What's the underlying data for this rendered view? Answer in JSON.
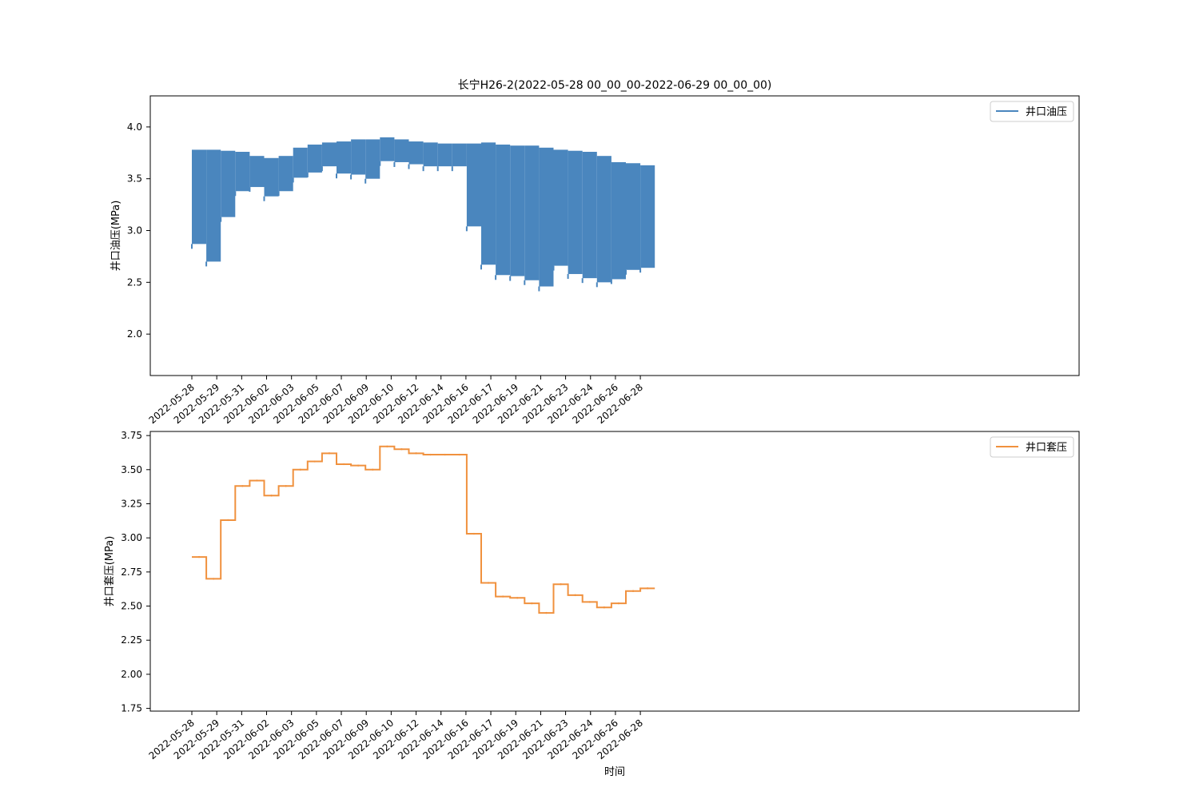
{
  "chart_data": [
    {
      "type": "line",
      "title": "长宁H26-2(2022-05-28 00_00_00-2022-06-29 00_00_00)",
      "xlabel": "",
      "ylabel": "井口油压(MPa)",
      "ylim": [
        1.6,
        4.3
      ],
      "yticks": [
        "2.0",
        "2.5",
        "3.0",
        "3.5",
        "4.0"
      ],
      "xticks": [
        "2022-05-28",
        "2022-05-29",
        "2022-05-31",
        "2022-06-02",
        "2022-06-03",
        "2022-06-05",
        "2022-06-07",
        "2022-06-09",
        "2022-06-10",
        "2022-06-12",
        "2022-06-14",
        "2022-06-16",
        "2022-06-17",
        "2022-06-19",
        "2022-06-21",
        "2022-06-23",
        "2022-06-24",
        "2022-06-26",
        "2022-06-28"
      ],
      "legend": "top-right",
      "grid": false,
      "color": "#4a86be",
      "series": [
        {
          "name": "井口油压",
          "x": [
            "2022-05-28",
            "2022-05-29",
            "2022-05-30",
            "2022-05-31",
            "2022-06-01",
            "2022-06-02",
            "2022-06-03",
            "2022-06-04",
            "2022-06-05",
            "2022-06-06",
            "2022-06-07",
            "2022-06-08",
            "2022-06-09",
            "2022-06-10",
            "2022-06-11",
            "2022-06-12",
            "2022-06-13",
            "2022-06-14",
            "2022-06-15",
            "2022-06-16",
            "2022-06-17",
            "2022-06-18",
            "2022-06-19",
            "2022-06-20",
            "2022-06-21",
            "2022-06-22",
            "2022-06-23",
            "2022-06-24",
            "2022-06-25",
            "2022-06-26",
            "2022-06-27",
            "2022-06-28"
          ],
          "low": [
            2.87,
            2.7,
            3.13,
            3.38,
            3.42,
            3.33,
            3.38,
            3.51,
            3.56,
            3.62,
            3.55,
            3.54,
            3.5,
            3.67,
            3.66,
            3.64,
            3.62,
            3.62,
            3.62,
            3.04,
            2.67,
            2.57,
            2.56,
            2.52,
            2.46,
            2.66,
            2.58,
            2.54,
            2.5,
            2.53,
            2.62,
            2.64
          ],
          "high": [
            3.78,
            3.78,
            3.77,
            3.76,
            3.72,
            3.7,
            3.72,
            3.8,
            3.83,
            3.85,
            3.86,
            3.88,
            3.88,
            3.9,
            3.88,
            3.86,
            3.85,
            3.84,
            3.84,
            3.84,
            3.85,
            3.83,
            3.82,
            3.82,
            3.8,
            3.78,
            3.77,
            3.76,
            3.72,
            3.66,
            3.65,
            3.63
          ]
        }
      ]
    },
    {
      "type": "line",
      "title": "",
      "xlabel": "时间",
      "ylabel": "井口套压(MPa)",
      "ylim": [
        1.73,
        3.78
      ],
      "yticks": [
        "1.75",
        "2.00",
        "2.25",
        "2.50",
        "2.75",
        "3.00",
        "3.25",
        "3.50",
        "3.75"
      ],
      "xticks": [
        "2022-05-28",
        "2022-05-29",
        "2022-05-31",
        "2022-06-02",
        "2022-06-03",
        "2022-06-05",
        "2022-06-07",
        "2022-06-09",
        "2022-06-10",
        "2022-06-12",
        "2022-06-14",
        "2022-06-16",
        "2022-06-17",
        "2022-06-19",
        "2022-06-21",
        "2022-06-23",
        "2022-06-24",
        "2022-06-26",
        "2022-06-28"
      ],
      "legend": "top-right",
      "grid": false,
      "color": "#f0913e",
      "series": [
        {
          "name": "井口套压",
          "x": [
            "2022-05-28",
            "2022-05-29",
            "2022-05-30",
            "2022-05-31",
            "2022-06-01",
            "2022-06-02",
            "2022-06-03",
            "2022-06-04",
            "2022-06-05",
            "2022-06-06",
            "2022-06-07",
            "2022-06-08",
            "2022-06-09",
            "2022-06-10",
            "2022-06-11",
            "2022-06-12",
            "2022-06-13",
            "2022-06-14",
            "2022-06-15",
            "2022-06-16",
            "2022-06-17",
            "2022-06-18",
            "2022-06-19",
            "2022-06-20",
            "2022-06-21",
            "2022-06-22",
            "2022-06-23",
            "2022-06-24",
            "2022-06-25",
            "2022-06-26",
            "2022-06-27",
            "2022-06-28"
          ],
          "values": [
            2.86,
            2.7,
            3.13,
            3.38,
            3.42,
            3.31,
            3.38,
            3.5,
            3.56,
            3.62,
            3.54,
            3.53,
            3.5,
            3.67,
            3.65,
            3.62,
            3.61,
            3.61,
            3.61,
            3.03,
            2.67,
            2.57,
            2.56,
            2.52,
            2.45,
            2.66,
            2.58,
            2.53,
            2.49,
            2.52,
            2.61,
            2.63
          ]
        }
      ]
    }
  ]
}
